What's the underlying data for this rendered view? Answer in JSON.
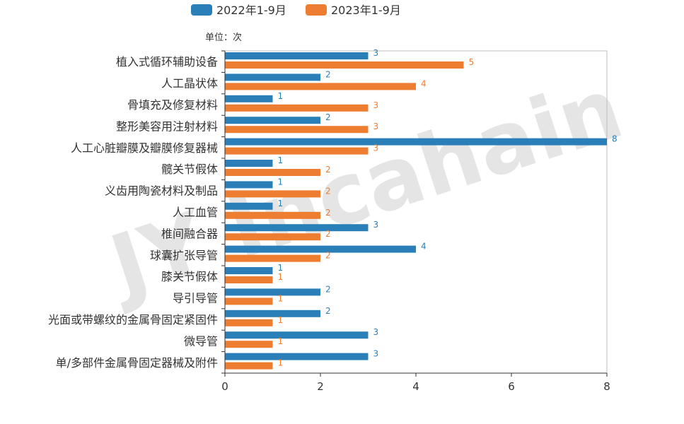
{
  "watermark": "JY Incahain",
  "unit_label": "单位：次",
  "legend": [
    {
      "label": "2022年1-9月",
      "color": "#2b7fb8"
    },
    {
      "label": "2023年1-9月",
      "color": "#ed7d31"
    }
  ],
  "chart_data": {
    "type": "bar",
    "orientation": "horizontal",
    "categories": [
      "植入式循环辅助设备",
      "人工晶状体",
      "骨填充及修复材料",
      "整形美容用注射材料",
      "人工心脏瓣膜及瓣膜修复器械",
      "髋关节假体",
      "义齿用陶瓷材料及制品",
      "人工血管",
      "椎间融合器",
      "球囊扩张导管",
      "膝关节假体",
      "导引导管",
      "光面或带螺纹的金属骨固定紧固件",
      "微导管",
      "单/多部件金属骨固定器械及附件"
    ],
    "series": [
      {
        "name": "2022年1-9月",
        "color": "#2b7fb8",
        "values": [
          3,
          2,
          1,
          2,
          8,
          1,
          1,
          1,
          3,
          4,
          1,
          2,
          2,
          3,
          3
        ]
      },
      {
        "name": "2023年1-9月",
        "color": "#ed7d31",
        "values": [
          5,
          4,
          3,
          3,
          3,
          2,
          2,
          2,
          2,
          2,
          1,
          1,
          1,
          1,
          1
        ]
      }
    ],
    "xlim": [
      0,
      8
    ],
    "xticks": [
      0,
      2,
      4,
      6,
      8
    ],
    "grid": false,
    "legend_position": "top-center"
  }
}
